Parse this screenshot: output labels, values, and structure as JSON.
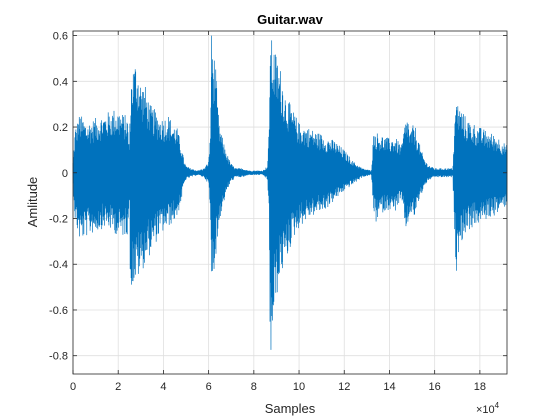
{
  "chart_data": {
    "type": "line",
    "title": "Guitar.wav",
    "xlabel": "Samples",
    "ylabel": "Amlitude",
    "x_exponent_base": "×10",
    "x_exponent_power": "4",
    "xlim": [
      0,
      192000
    ],
    "ylim": [
      -0.88,
      0.62
    ],
    "x_ticks": [
      0,
      20000,
      40000,
      60000,
      80000,
      100000,
      120000,
      140000,
      160000,
      180000
    ],
    "x_tick_labels": [
      "0",
      "2",
      "4",
      "6",
      "8",
      "10",
      "12",
      "14",
      "16",
      "18"
    ],
    "y_ticks": [
      -0.8,
      -0.6,
      -0.4,
      -0.2,
      0,
      0.2,
      0.4,
      0.6
    ],
    "y_tick_labels": [
      "-0.8",
      "-0.6",
      "-0.4",
      "-0.2",
      "0",
      "0.2",
      "0.4",
      "0.6"
    ],
    "grid": true,
    "line_color": "#0072BD",
    "series": [
      {
        "x": [
          0,
          1000,
          3000,
          6000,
          10000,
          14000,
          18000,
          20000,
          22000,
          24000,
          25000,
          25300,
          26000,
          28000,
          30000,
          32000,
          34000,
          36000,
          38000,
          40000,
          42000,
          44000,
          46000,
          48000,
          49000,
          50000,
          52000,
          55000,
          58000,
          60000,
          60800,
          61200,
          62000,
          63000,
          64000,
          65000,
          67000,
          69000,
          70000,
          72000,
          75000,
          78000,
          80000,
          84000,
          86000,
          86800,
          87100,
          88000,
          90000,
          92000,
          94000,
          97000,
          100000,
          104000,
          108000,
          112000,
          116000,
          120000,
          124000,
          128000,
          132000,
          132800,
          133100,
          134000,
          136000,
          138000,
          140000,
          142000,
          144000,
          145500,
          146500,
          148000,
          149000,
          150000,
          151000,
          152000,
          154000,
          156000,
          158000,
          160000,
          163000,
          166000,
          168000,
          169000,
          169600,
          170500,
          172000,
          174000,
          177000,
          180000,
          184000,
          188000,
          192000
        ],
        "ymax": [
          0.05,
          0.2,
          0.26,
          0.22,
          0.24,
          0.26,
          0.28,
          0.28,
          0.26,
          0.25,
          0.12,
          0.3,
          0.46,
          0.5,
          0.4,
          0.38,
          0.3,
          0.28,
          0.25,
          0.24,
          0.26,
          0.22,
          0.2,
          0.12,
          0.06,
          0.03,
          0.02,
          0.01,
          0.02,
          0.05,
          0.2,
          0.62,
          0.55,
          0.48,
          0.3,
          0.2,
          0.12,
          0.06,
          0.04,
          0.02,
          0.02,
          0.01,
          0.01,
          0.01,
          0.03,
          0.2,
          0.62,
          0.58,
          0.52,
          0.45,
          0.35,
          0.28,
          0.22,
          0.2,
          0.18,
          0.16,
          0.14,
          0.1,
          0.05,
          0.02,
          0.01,
          0.15,
          0.2,
          0.18,
          0.17,
          0.16,
          0.15,
          0.16,
          0.14,
          0.12,
          0.2,
          0.26,
          0.18,
          0.2,
          0.22,
          0.18,
          0.1,
          0.05,
          0.03,
          0.02,
          0.02,
          0.02,
          0.02,
          0.25,
          0.33,
          0.3,
          0.28,
          0.24,
          0.22,
          0.2,
          0.18,
          0.16,
          0.12
        ],
        "ymin": [
          -0.05,
          -0.22,
          -0.3,
          -0.28,
          -0.26,
          -0.24,
          -0.26,
          -0.28,
          -0.28,
          -0.27,
          -0.12,
          -0.5,
          -0.5,
          -0.48,
          -0.44,
          -0.4,
          -0.36,
          -0.32,
          -0.28,
          -0.26,
          -0.24,
          -0.22,
          -0.2,
          -0.12,
          -0.06,
          -0.03,
          -0.02,
          -0.01,
          -0.02,
          -0.05,
          -0.2,
          -0.5,
          -0.45,
          -0.38,
          -0.3,
          -0.2,
          -0.12,
          -0.06,
          -0.04,
          -0.02,
          -0.02,
          -0.01,
          -0.01,
          -0.01,
          -0.03,
          -0.2,
          -0.88,
          -0.75,
          -0.55,
          -0.45,
          -0.4,
          -0.3,
          -0.24,
          -0.2,
          -0.18,
          -0.16,
          -0.12,
          -0.08,
          -0.05,
          -0.02,
          -0.01,
          -0.15,
          -0.18,
          -0.22,
          -0.18,
          -0.17,
          -0.16,
          -0.18,
          -0.14,
          -0.13,
          -0.23,
          -0.26,
          -0.18,
          -0.2,
          -0.2,
          -0.16,
          -0.1,
          -0.05,
          -0.03,
          -0.02,
          -0.02,
          -0.02,
          -0.02,
          -0.3,
          -0.45,
          -0.35,
          -0.3,
          -0.26,
          -0.24,
          -0.22,
          -0.2,
          -0.18,
          -0.14
        ]
      }
    ]
  }
}
